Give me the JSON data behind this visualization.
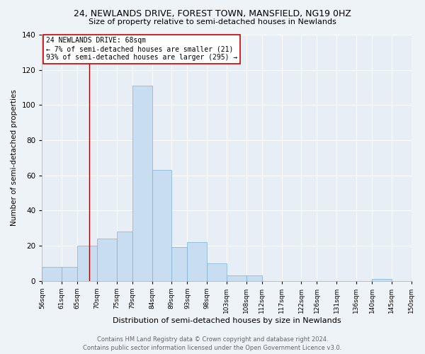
{
  "title1": "24, NEWLANDS DRIVE, FOREST TOWN, MANSFIELD, NG19 0HZ",
  "title2": "Size of property relative to semi-detached houses in Newlands",
  "xlabel": "Distribution of semi-detached houses by size in Newlands",
  "ylabel": "Number of semi-detached properties",
  "bar_color": "#c8ddf0",
  "bar_edge_color": "#7ab0d4",
  "bar_data": [
    [
      56,
      5,
      8
    ],
    [
      61,
      4,
      8
    ],
    [
      65,
      5,
      20
    ],
    [
      70,
      5,
      24
    ],
    [
      75,
      4,
      28
    ],
    [
      79,
      5,
      111
    ],
    [
      84,
      5,
      63
    ],
    [
      89,
      4,
      19
    ],
    [
      93,
      5,
      22
    ],
    [
      98,
      5,
      10
    ],
    [
      103,
      5,
      3
    ],
    [
      108,
      4,
      3
    ],
    [
      112,
      5,
      0
    ],
    [
      117,
      5,
      0
    ],
    [
      122,
      4,
      0
    ],
    [
      126,
      5,
      0
    ],
    [
      131,
      5,
      0
    ],
    [
      136,
      4,
      0
    ],
    [
      140,
      5,
      1
    ],
    [
      145,
      5,
      0
    ]
  ],
  "tick_positions": [
    56,
    61,
    65,
    70,
    75,
    79,
    84,
    89,
    93,
    98,
    103,
    108,
    112,
    117,
    122,
    126,
    131,
    136,
    140,
    145,
    150
  ],
  "tick_labels": [
    "56sqm",
    "61sqm",
    "65sqm",
    "70sqm",
    "75sqm",
    "79sqm",
    "84sqm",
    "89sqm",
    "93sqm",
    "98sqm",
    "103sqm",
    "108sqm",
    "112sqm",
    "117sqm",
    "122sqm",
    "126sqm",
    "131sqm",
    "136sqm",
    "140sqm",
    "145sqm",
    "150sqm"
  ],
  "ylim": [
    0,
    140
  ],
  "xlim": [
    56,
    150
  ],
  "yticks": [
    0,
    20,
    40,
    60,
    80,
    100,
    120,
    140
  ],
  "vline_x": 68,
  "vline_color": "#990000",
  "annotation_title": "24 NEWLANDS DRIVE: 68sqm",
  "annotation_line1": "← 7% of semi-detached houses are smaller (21)",
  "annotation_line2": "93% of semi-detached houses are larger (295) →",
  "annotation_box_facecolor": "#ffffff",
  "annotation_box_edgecolor": "#cc0000",
  "footer1": "Contains HM Land Registry data © Crown copyright and database right 2024.",
  "footer2": "Contains public sector information licensed under the Open Government Licence v3.0.",
  "background_color": "#eef3f8",
  "plot_background_color": "#e8eef5",
  "grid_color": "#ffffff",
  "title1_fontsize": 9,
  "title2_fontsize": 8,
  "xlabel_fontsize": 8,
  "ylabel_fontsize": 7.5,
  "tick_fontsize": 6.5,
  "ytick_fontsize": 7.5,
  "footer_fontsize": 6,
  "annotation_fontsize": 7
}
